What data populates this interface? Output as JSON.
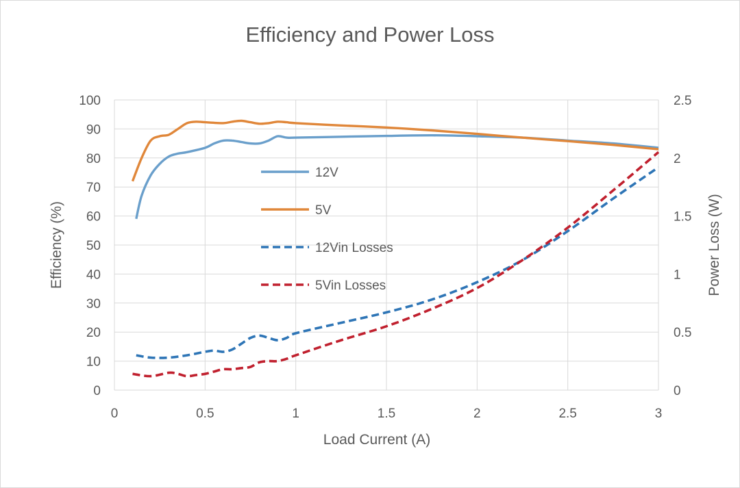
{
  "chart_data": {
    "type": "line",
    "title": "Efficiency and Power Loss",
    "xlabel": "Load Current (A)",
    "ylabel": "Efficiency (%)",
    "y2label": "Power Loss  (W)",
    "xlim": [
      0,
      3
    ],
    "ylim": [
      0,
      100
    ],
    "y2lim": [
      0,
      2.5
    ],
    "xticks": [
      "0",
      "0.5",
      "1",
      "1.5",
      "2",
      "2.5",
      "3"
    ],
    "yticks": [
      "0",
      "10",
      "20",
      "30",
      "40",
      "50",
      "60",
      "70",
      "80",
      "90",
      "100"
    ],
    "y2ticks": [
      "0",
      "0.5",
      "1",
      "1.5",
      "2",
      "2.5"
    ],
    "grid": true,
    "legend_position": "center-left inside plot",
    "series": [
      {
        "name": "12V",
        "axis": "left",
        "style": "solid",
        "color": "#6a9fcb",
        "x": [
          0.12,
          0.15,
          0.2,
          0.25,
          0.3,
          0.35,
          0.4,
          0.5,
          0.55,
          0.6,
          0.65,
          0.7,
          0.75,
          0.8,
          0.85,
          0.9,
          0.95,
          1.0,
          1.25,
          1.5,
          1.75,
          2.0,
          2.25,
          2.5,
          2.75,
          3.0
        ],
        "y": [
          59,
          67,
          74,
          78,
          80.5,
          81.5,
          82,
          83.5,
          85,
          86,
          86,
          85.5,
          85,
          85,
          86,
          87.5,
          87,
          87,
          87.3,
          87.6,
          87.8,
          87.5,
          87,
          86,
          85,
          83.5
        ]
      },
      {
        "name": "5V",
        "axis": "left",
        "style": "solid",
        "color": "#e0873a",
        "x": [
          0.1,
          0.15,
          0.2,
          0.25,
          0.3,
          0.35,
          0.4,
          0.45,
          0.5,
          0.6,
          0.65,
          0.7,
          0.75,
          0.8,
          0.85,
          0.9,
          0.95,
          1.0,
          1.25,
          1.5,
          1.75,
          2.0,
          2.25,
          2.5,
          2.75,
          3.0
        ],
        "y": [
          72,
          80,
          86,
          87.5,
          88,
          90,
          92,
          92.5,
          92.3,
          92,
          92.5,
          92.8,
          92.3,
          91.8,
          92,
          92.5,
          92.3,
          92,
          91.2,
          90.5,
          89.5,
          88.3,
          87,
          85.8,
          84.5,
          83
        ]
      },
      {
        "name": "12Vin Losses",
        "axis": "right",
        "style": "dashed",
        "color": "#2e75b6",
        "x": [
          0.12,
          0.2,
          0.3,
          0.4,
          0.5,
          0.55,
          0.6,
          0.65,
          0.7,
          0.75,
          0.8,
          0.85,
          0.9,
          0.95,
          1.0,
          1.25,
          1.5,
          1.75,
          2.0,
          2.25,
          2.5,
          2.75,
          3.0
        ],
        "y": [
          0.3,
          0.28,
          0.28,
          0.3,
          0.33,
          0.34,
          0.33,
          0.35,
          0.4,
          0.45,
          0.47,
          0.45,
          0.43,
          0.45,
          0.49,
          0.58,
          0.67,
          0.78,
          0.93,
          1.12,
          1.37,
          1.65,
          1.92
        ]
      },
      {
        "name": "5Vin Losses",
        "axis": "right",
        "style": "dashed",
        "color": "#c0202e",
        "x": [
          0.1,
          0.2,
          0.3,
          0.35,
          0.4,
          0.45,
          0.5,
          0.55,
          0.6,
          0.65,
          0.7,
          0.75,
          0.8,
          0.85,
          0.9,
          0.95,
          1.0,
          1.25,
          1.5,
          1.75,
          2.0,
          2.25,
          2.5,
          2.75,
          3.0
        ],
        "y": [
          0.14,
          0.12,
          0.15,
          0.14,
          0.12,
          0.13,
          0.14,
          0.16,
          0.18,
          0.18,
          0.19,
          0.2,
          0.24,
          0.25,
          0.25,
          0.27,
          0.3,
          0.43,
          0.55,
          0.7,
          0.88,
          1.12,
          1.4,
          1.72,
          2.05
        ]
      }
    ]
  }
}
